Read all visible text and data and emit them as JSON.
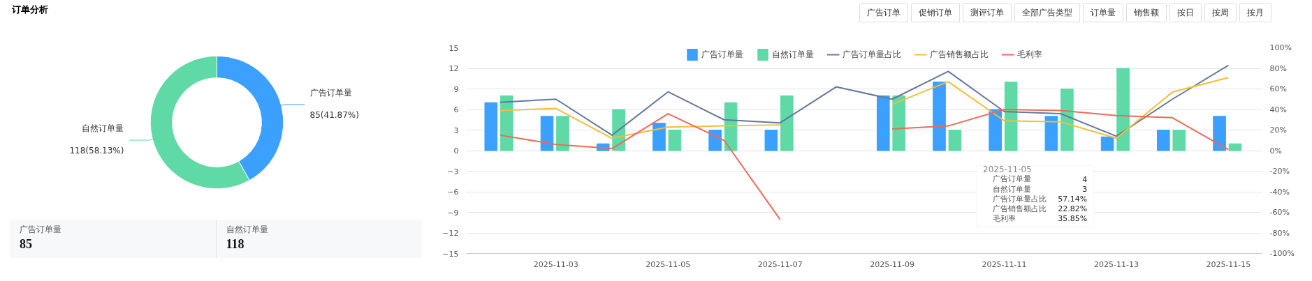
{
  "chart_data": [
    {
      "type": "donut",
      "title": "订单分析",
      "categories": [
        "广告订单量",
        "自然订单量"
      ],
      "values": [
        85,
        118
      ],
      "colors": [
        "#3ba0ff",
        "#5fd9a6"
      ],
      "value_labels": [
        "85(41.87%)",
        "118(58.13%)"
      ],
      "annotations": [
        "广告订单量",
        "85",
        "自然订单量",
        "118"
      ]
    },
    {
      "type": "other",
      "annotations": [
        "广告订单",
        "促销订单",
        "测评订单",
        "全部广告类型",
        "订单量",
        "销售额",
        "按日",
        "按周",
        "按月"
      ]
    },
    {
      "type": "bar",
      "categories": [
        null,
        "2025-11-03",
        null,
        "2025-11-05",
        null,
        "2025-11-07",
        null,
        "2025-11-09",
        null,
        "2025-11-11",
        null,
        "2025-11-13",
        null,
        "2025-11-15"
      ],
      "ylim": [
        -15,
        15
      ],
      "yticks": [
        -15,
        -12,
        -9,
        -6,
        -3,
        0,
        3,
        6,
        9,
        12,
        15
      ],
      "y2lim": [
        -100,
        100
      ],
      "y2ticks": [
        {
          "value": -100,
          "label": "-100%"
        },
        {
          "value": -80,
          "label": "-80%"
        },
        {
          "value": -60,
          "label": "-60%"
        },
        {
          "value": -40,
          "label": "-40%"
        },
        {
          "value": -20,
          "label": "-20%"
        },
        {
          "value": 0,
          "label": "0%"
        },
        {
          "value": 20,
          "label": "20%"
        },
        {
          "value": 40,
          "label": "40%"
        },
        {
          "value": 60,
          "label": "60%"
        },
        {
          "value": 80,
          "label": "80%"
        },
        {
          "value": 100,
          "label": "100%"
        }
      ],
      "grid": "y",
      "legend": "top",
      "series": [
        {
          "name": "广告订单量",
          "color": "#3ba0ff",
          "values": [
            7,
            5,
            1,
            4,
            3,
            3,
            null,
            8,
            10,
            6,
            5,
            2,
            3,
            5
          ]
        },
        {
          "name": "自然订单量",
          "color": "#5fd9a6",
          "values": [
            8,
            5,
            6,
            3,
            7,
            8,
            null,
            8,
            3,
            10,
            9,
            12,
            3,
            1
          ]
        },
        {
          "name": "广告订单量占比",
          "type": "line",
          "axis": "y2",
          "color": "#65789b",
          "values": [
            47,
            50,
            15,
            57.14,
            30,
            27,
            62,
            50,
            77,
            38,
            36,
            14,
            50,
            83
          ]
        },
        {
          "name": "广告销售额占比",
          "type": "line",
          "axis": "y2",
          "color": "#f5bd3a",
          "values": [
            39,
            41,
            12,
            22.82,
            24,
            25,
            null,
            45,
            67,
            29,
            28,
            12,
            57,
            71
          ]
        },
        {
          "name": "毛利率",
          "type": "line",
          "axis": "y2",
          "color": "#ee6a5b",
          "values": [
            15,
            6,
            2,
            35.85,
            10,
            -67,
            null,
            21,
            24,
            40,
            39,
            34,
            32,
            1
          ]
        }
      ],
      "annotations": [
        "2025-11-05",
        "4",
        "3",
        "57.14%",
        "22.82%",
        "35.85%"
      ]
    }
  ]
}
